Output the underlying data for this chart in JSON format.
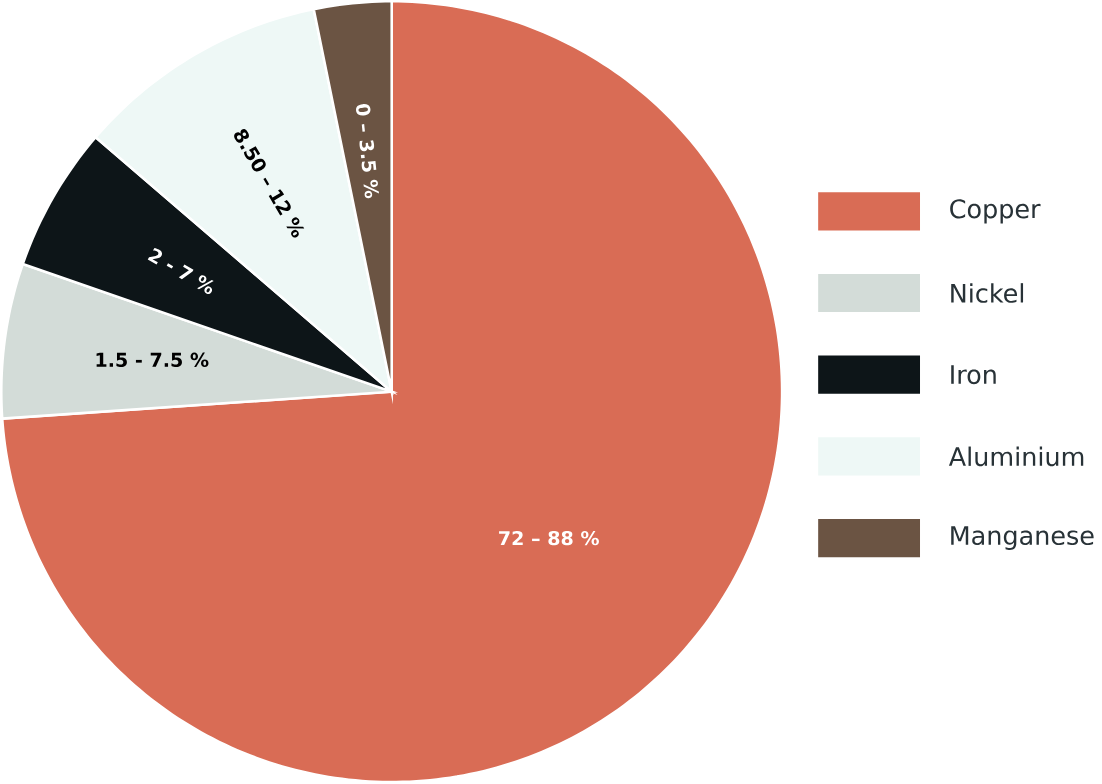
{
  "chart_data": {
    "type": "pie",
    "categories": [
      "Copper",
      "Nickel",
      "Iron",
      "Aluminium",
      "Manganese"
    ],
    "values": [
      73.9,
      6.4,
      6.0,
      10.5,
      3.2
    ],
    "annotations": [
      {
        "text": "72 – 88 %",
        "x": "Copper"
      },
      {
        "text": "1.5 - 7.5 %",
        "x": "Nickel"
      },
      {
        "text": "2 - 7 %",
        "x": "Iron"
      },
      {
        "text": "8.50 – 12 %",
        "x": "Aluminium"
      },
      {
        "text": "0 – 3.5 %",
        "x": "Manganese"
      }
    ],
    "colors": [
      "#d96c55",
      "#d3dcd8",
      "#0d1518",
      "#eef8f6",
      "#6b5443"
    ],
    "legend": "right"
  }
}
